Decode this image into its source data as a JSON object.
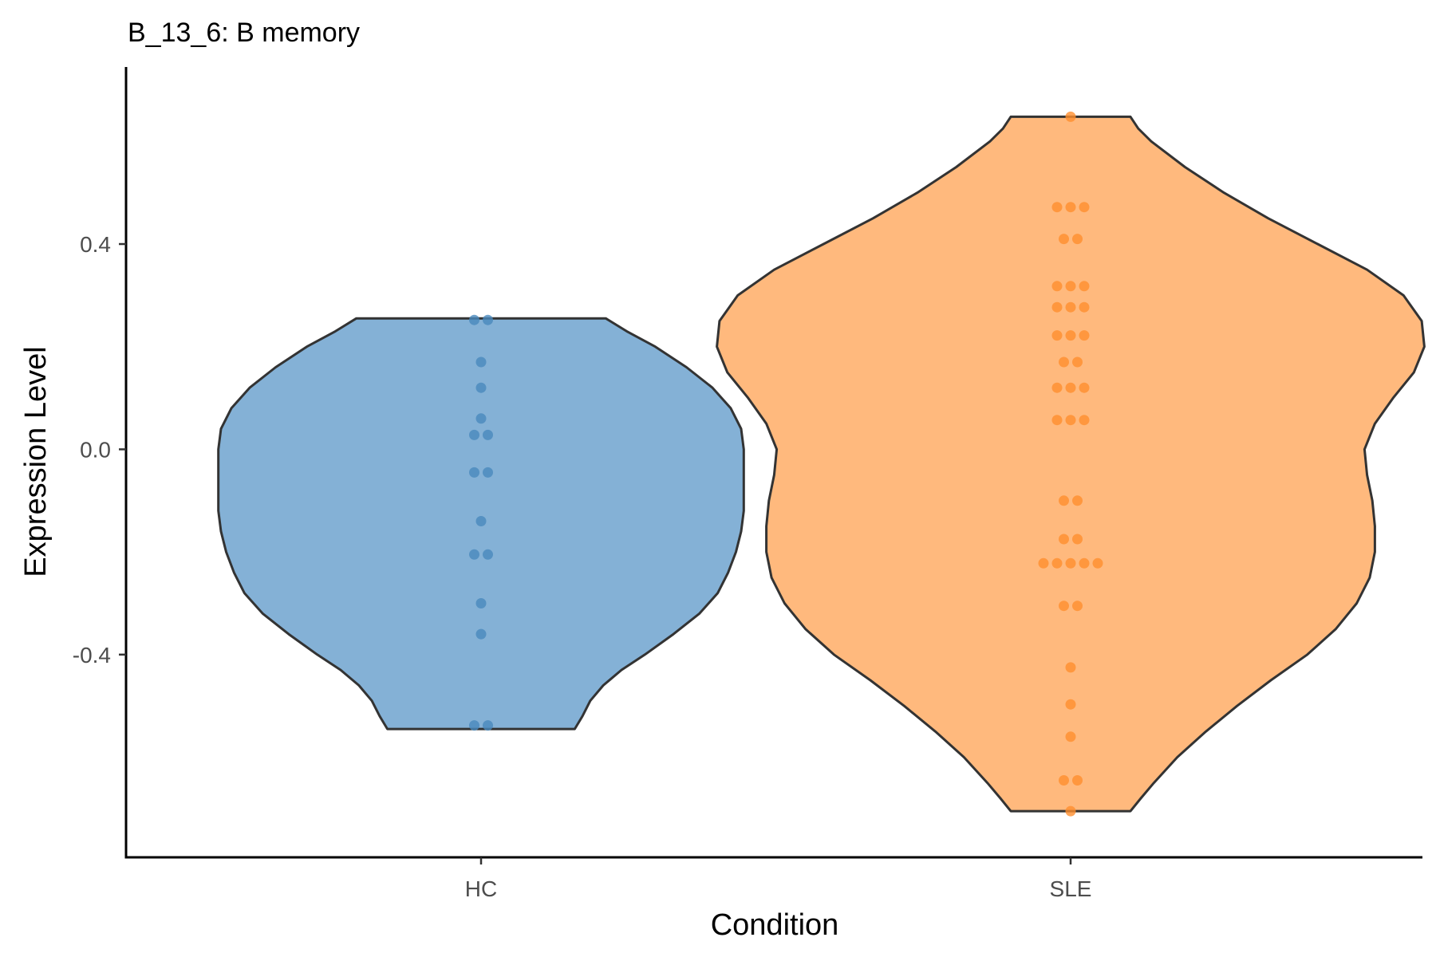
{
  "chart_data": {
    "type": "violin",
    "title": "B_13_6: B memory",
    "xlabel": "Condition",
    "ylabel": "Expression Level",
    "categories": [
      "HC",
      "SLE"
    ],
    "ylim": [
      -0.795,
      0.745
    ],
    "yticks": [
      -0.4,
      0.0,
      0.4
    ],
    "ytick_labels": [
      "-0.4",
      "0.0",
      "0.4"
    ],
    "colors": {
      "HC": {
        "fill": "#6fa3cf",
        "point": "#4a89bd"
      },
      "SLE": {
        "fill": "#ffad66",
        "point": "#ff8f2e"
      }
    },
    "violins": [
      {
        "category": "HC",
        "y_min": -0.545,
        "y_max": 0.255,
        "density": [
          [
            -0.545,
            0.36
          ],
          [
            -0.52,
            0.39
          ],
          [
            -0.49,
            0.42
          ],
          [
            -0.46,
            0.47
          ],
          [
            -0.43,
            0.54
          ],
          [
            -0.4,
            0.63
          ],
          [
            -0.36,
            0.74
          ],
          [
            -0.32,
            0.84
          ],
          [
            -0.28,
            0.91
          ],
          [
            -0.24,
            0.95
          ],
          [
            -0.2,
            0.98
          ],
          [
            -0.16,
            1.0
          ],
          [
            -0.12,
            1.01
          ],
          [
            -0.08,
            1.01
          ],
          [
            -0.04,
            1.01
          ],
          [
            0.0,
            1.01
          ],
          [
            0.04,
            1.0
          ],
          [
            0.08,
            0.96
          ],
          [
            0.12,
            0.89
          ],
          [
            0.16,
            0.79
          ],
          [
            0.2,
            0.67
          ],
          [
            0.23,
            0.56
          ],
          [
            0.255,
            0.48
          ]
        ],
        "points": [
          0.252,
          0.252,
          0.17,
          0.12,
          0.06,
          0.028,
          0.028,
          -0.045,
          -0.045,
          -0.14,
          -0.205,
          -0.205,
          -0.3,
          -0.36,
          -0.538,
          -0.538
        ]
      },
      {
        "category": "SLE",
        "y_min": -0.705,
        "y_max": 0.648,
        "density": [
          [
            -0.705,
            0.23
          ],
          [
            -0.68,
            0.27
          ],
          [
            -0.65,
            0.32
          ],
          [
            -0.6,
            0.41
          ],
          [
            -0.55,
            0.52
          ],
          [
            -0.5,
            0.64
          ],
          [
            -0.45,
            0.77
          ],
          [
            -0.4,
            0.91
          ],
          [
            -0.35,
            1.02
          ],
          [
            -0.3,
            1.1
          ],
          [
            -0.25,
            1.15
          ],
          [
            -0.2,
            1.17
          ],
          [
            -0.15,
            1.17
          ],
          [
            -0.1,
            1.16
          ],
          [
            -0.05,
            1.14
          ],
          [
            0.0,
            1.13
          ],
          [
            0.05,
            1.17
          ],
          [
            0.1,
            1.24
          ],
          [
            0.15,
            1.32
          ],
          [
            0.2,
            1.36
          ],
          [
            0.25,
            1.35
          ],
          [
            0.3,
            1.28
          ],
          [
            0.35,
            1.14
          ],
          [
            0.4,
            0.95
          ],
          [
            0.45,
            0.76
          ],
          [
            0.5,
            0.59
          ],
          [
            0.55,
            0.44
          ],
          [
            0.6,
            0.31
          ],
          [
            0.625,
            0.26
          ],
          [
            0.648,
            0.23
          ]
        ],
        "points": [
          0.648,
          0.472,
          0.472,
          0.472,
          0.41,
          0.41,
          0.318,
          0.318,
          0.318,
          0.277,
          0.277,
          0.277,
          0.222,
          0.222,
          0.222,
          0.17,
          0.17,
          0.12,
          0.12,
          0.12,
          0.057,
          0.057,
          0.057,
          -0.1,
          -0.1,
          -0.175,
          -0.175,
          -0.222,
          -0.222,
          -0.222,
          -0.222,
          -0.222,
          -0.305,
          -0.305,
          -0.425,
          -0.497,
          -0.56,
          -0.645,
          -0.645,
          -0.705
        ]
      }
    ]
  }
}
